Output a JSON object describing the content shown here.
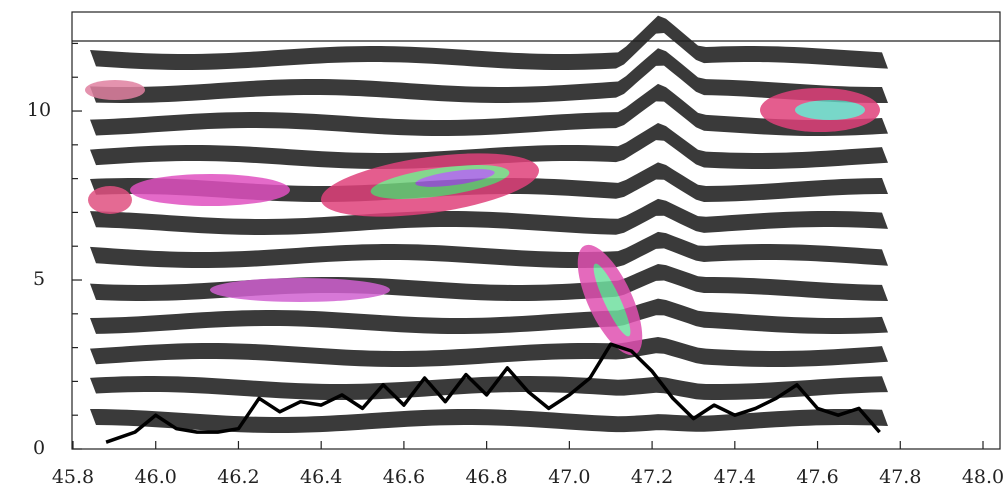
{
  "chart_data": {
    "type": "line",
    "xlim": [
      45.8,
      48.0
    ],
    "xticks": [
      {
        "value": 45.8,
        "label": "45.8"
      },
      {
        "value": 46.0,
        "label": "46.0"
      },
      46.2,
      46.4,
      46.6,
      46.8,
      {
        "value": 47.0,
        "label": "47.0"
      },
      47.2,
      47.4,
      47.6,
      47.8,
      {
        "value": 48.0,
        "label": "48.0"
      }
    ],
    "ylim": [
      0,
      12.93
    ],
    "yticks": [
      0,
      5,
      10
    ],
    "yminorticks": [
      1,
      2,
      3,
      4,
      6,
      7,
      8,
      9,
      11,
      12
    ],
    "series": [
      {
        "color": "#000000",
        "x": [
          45.88,
          45.95,
          46.0,
          46.05,
          46.1,
          46.15,
          46.2,
          46.25,
          46.3,
          46.35,
          46.4,
          46.45,
          46.5,
          46.55,
          46.6,
          46.65,
          46.7,
          46.75,
          46.8,
          46.85,
          46.9,
          46.95,
          47.0,
          47.05,
          47.1,
          47.15,
          47.2,
          47.25,
          47.3,
          47.35,
          47.4,
          47.45,
          47.5,
          47.55,
          47.6,
          47.65,
          47.7,
          47.75
        ],
        "values": [
          0.2,
          0.5,
          1.0,
          0.6,
          0.5,
          0.5,
          0.6,
          1.5,
          1.1,
          1.4,
          1.3,
          1.6,
          1.2,
          1.9,
          1.3,
          2.1,
          1.4,
          2.2,
          1.6,
          2.4,
          1.7,
          1.2,
          1.6,
          2.1,
          3.1,
          2.9,
          2.3,
          1.5,
          0.9,
          1.3,
          1.0,
          1.2,
          1.5,
          1.9,
          1.2,
          1.0,
          1.2,
          0.5
        ]
      }
    ]
  }
}
